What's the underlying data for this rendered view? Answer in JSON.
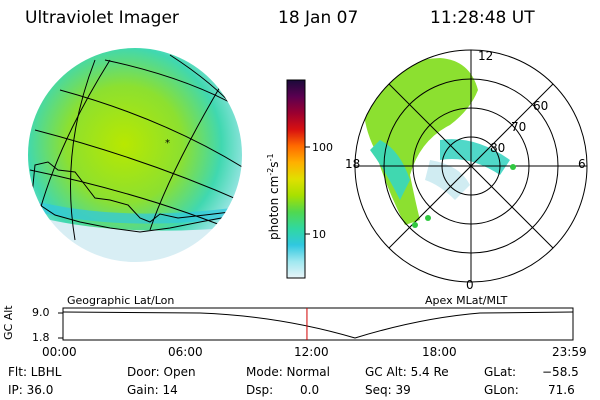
{
  "header": {
    "instrument": "Ultraviolet Imager",
    "date": "18 Jan 07",
    "time": "11:28:48 UT"
  },
  "colorbar": {
    "unit_prefix": "photon cm",
    "unit_exp1": "-2",
    "unit_mid": "s",
    "unit_exp2": "-1",
    "ticks": [
      "100",
      "10"
    ],
    "colors": [
      "#1a0a3a",
      "#5a0050",
      "#9b0030",
      "#d81010",
      "#ff6a00",
      "#ffb000",
      "#e0e000",
      "#a8e000",
      "#50d850",
      "#30d8a0",
      "#30c8e0",
      "#a0e8f0",
      "#e8f4f8"
    ]
  },
  "geo_panel": {
    "label": "Geographic Lat/Lon"
  },
  "polar_panel": {
    "label": "Apex MLat/MLT",
    "mlt_labels": [
      "12",
      "18",
      "6",
      "0"
    ],
    "lat_labels": [
      "60",
      "70",
      "80"
    ]
  },
  "timeline": {
    "ylabel": "GC Alt",
    "yticks": [
      "9.0",
      "1.8"
    ],
    "xticks": [
      "00:00",
      "06:00",
      "12:00",
      "18:00",
      "23:59"
    ],
    "marker_hour": 11.48
  },
  "info": {
    "filter": "Flt: LBHL",
    "ip": "IP: 36.0",
    "door": "Door: Open",
    "gain": "Gain: 14",
    "mode": "Mode: Normal",
    "dsp_label": "Dsp:",
    "dsp_value": "0.0",
    "gc_alt": "GC Alt: 5.4 Re",
    "seq": "Seq: 39",
    "glat_label": "GLat:",
    "glat_value": "−58.5",
    "glon_label": "GLon:",
    "glon_value": "71.6"
  }
}
